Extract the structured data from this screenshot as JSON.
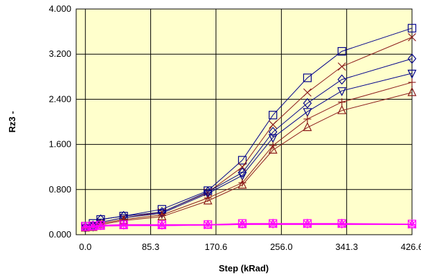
{
  "chart_data": {
    "type": "line",
    "title": "",
    "xlabel": "Step (kRad)",
    "ylabel": "Rz3 -",
    "x_ticks": [
      "0.0",
      "85.3",
      "170.6",
      "256.0",
      "341.3",
      "426.6"
    ],
    "y_ticks": [
      "0.000",
      "0.800",
      "1.600",
      "2.400",
      "3.200",
      "4.000"
    ],
    "xlim": [
      -12,
      426.6
    ],
    "ylim": [
      0,
      4.0
    ],
    "grid": true,
    "legend": "none",
    "x": [
      0,
      10,
      20,
      50,
      100,
      160,
      205,
      245,
      290,
      335,
      426.6
    ],
    "series": [
      {
        "marker": "square",
        "color": "#00008b",
        "values": [
          0.15,
          0.2,
          0.27,
          0.33,
          0.45,
          0.78,
          1.32,
          2.12,
          2.78,
          3.25,
          3.66
        ]
      },
      {
        "marker": "x",
        "color": "#8b1a1a",
        "values": [
          0.13,
          0.17,
          0.22,
          0.3,
          0.4,
          0.75,
          1.2,
          1.95,
          2.52,
          2.98,
          3.5
        ]
      },
      {
        "marker": "diamond",
        "color": "#00008b",
        "values": [
          0.13,
          0.16,
          0.27,
          0.33,
          0.4,
          0.76,
          1.1,
          1.82,
          2.33,
          2.75,
          3.12
        ]
      },
      {
        "marker": "triangle-down",
        "color": "#00008b",
        "values": [
          0.13,
          0.15,
          0.22,
          0.3,
          0.38,
          0.73,
          1.05,
          1.72,
          2.18,
          2.55,
          2.86
        ]
      },
      {
        "marker": "plus",
        "color": "#8b1a1a",
        "values": [
          0.12,
          0.14,
          0.2,
          0.27,
          0.35,
          0.65,
          0.92,
          1.58,
          2.05,
          2.35,
          2.7
        ]
      },
      {
        "marker": "triangle-up",
        "color": "#8b1a1a",
        "values": [
          0.12,
          0.13,
          0.18,
          0.25,
          0.32,
          0.6,
          0.88,
          1.5,
          1.9,
          2.2,
          2.52
        ]
      },
      {
        "marker": "square",
        "color": "#ff00ff",
        "values": [
          0.15,
          0.16,
          0.17,
          0.18,
          0.18,
          0.18,
          0.2,
          0.2,
          0.2,
          0.2,
          0.19
        ]
      },
      {
        "marker": "x",
        "color": "#ff00ff",
        "values": [
          0.14,
          0.15,
          0.16,
          0.17,
          0.17,
          0.17,
          0.19,
          0.19,
          0.19,
          0.19,
          0.18
        ]
      },
      {
        "marker": "triangle-up",
        "color": "#ff00ff",
        "values": [
          0.13,
          0.14,
          0.15,
          0.16,
          0.16,
          0.17,
          0.18,
          0.19,
          0.19,
          0.19,
          0.18
        ]
      },
      {
        "marker": "plus",
        "color": "#ff00ff",
        "values": [
          0.14,
          0.14,
          0.15,
          0.16,
          0.16,
          0.17,
          0.18,
          0.18,
          0.18,
          0.18,
          0.18
        ]
      }
    ]
  },
  "colors": {
    "plot_background": "#ffffcc",
    "grid": "#000000",
    "blue_series": "#00008b",
    "red_series": "#8b1a1a",
    "magenta_series": "#ff00ff"
  }
}
